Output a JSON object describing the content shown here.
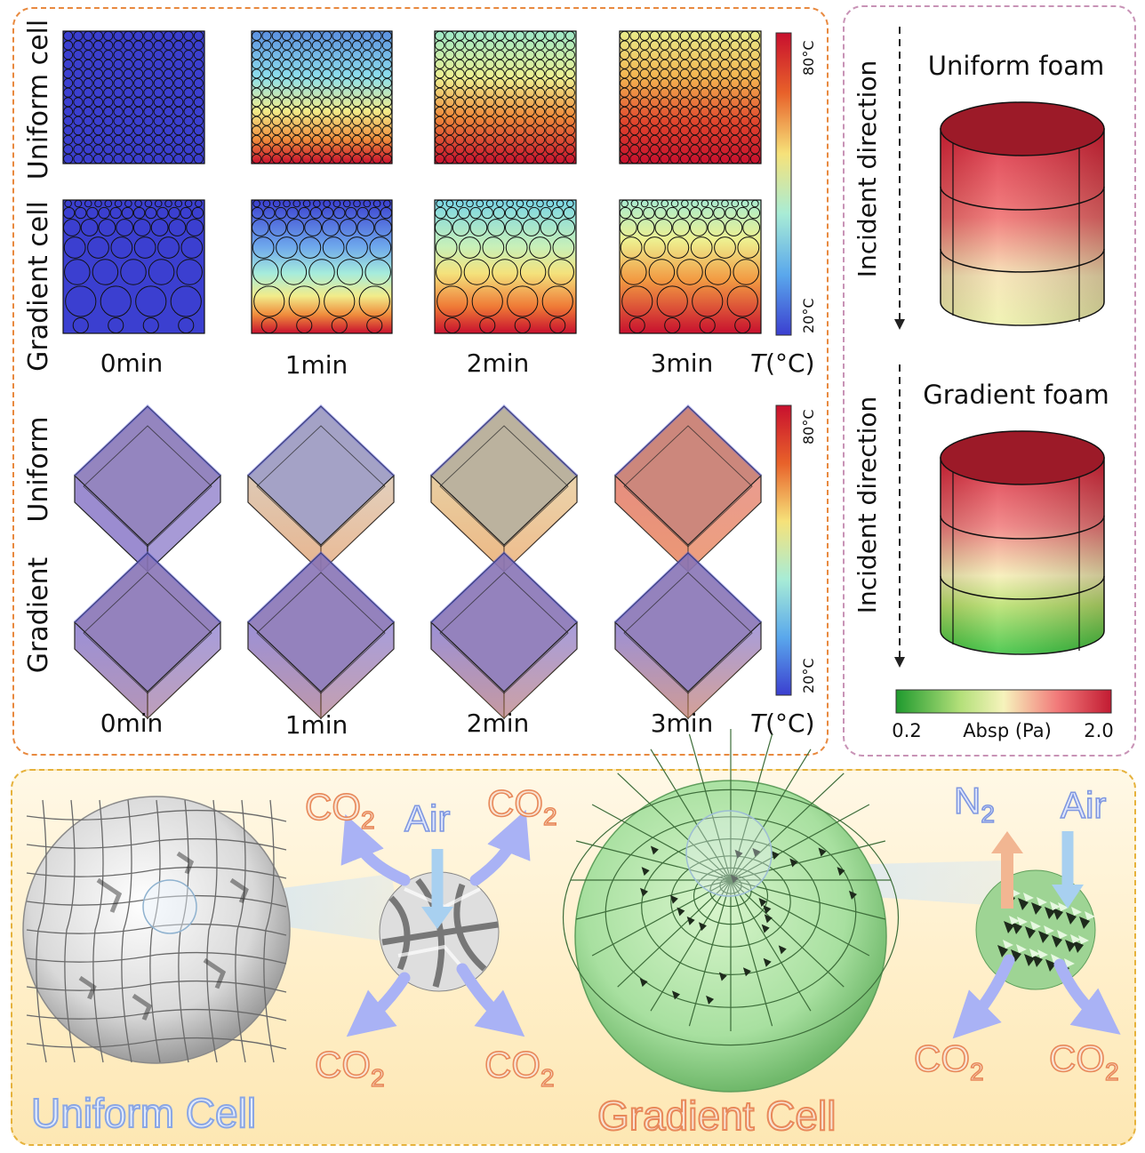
{
  "top_left": {
    "row_labels": [
      "Uniform cell",
      "Gradient cell",
      "Uniform",
      "Gradient"
    ],
    "time_labels": [
      "0min",
      "1min",
      "2min",
      "3min"
    ],
    "temp_axis": "T(°C)",
    "temp_axis_italic": "T",
    "temp_axis_unit": "(°C)",
    "colorbar_max": "80°C",
    "colorbar_min": "20°C"
  },
  "top_right": {
    "incident_label": "Incident direction",
    "uniform_title": "Uniform foam",
    "gradient_title": "Gradient foam",
    "colorbar_min": "0.2",
    "colorbar_label": "Absp (Pa)",
    "colorbar_max": "2.0"
  },
  "bottom": {
    "uniform_title": "Uniform Cell",
    "gradient_title": "Gradient Cell",
    "co2": "CO",
    "co2_sub": "2",
    "n2": "N",
    "n2_sub": "2",
    "air": "Air"
  },
  "colors": {
    "hot": "#c8102e",
    "cold": "#3b3fd0",
    "panel_orange": "#e8893f",
    "panel_pink": "#c893b6",
    "panel_yellow": "#e6b23c",
    "gas_orange": "#f19a6e",
    "gas_blue": "#8ea6ea",
    "arrow_blue": "#a9b2f5"
  }
}
